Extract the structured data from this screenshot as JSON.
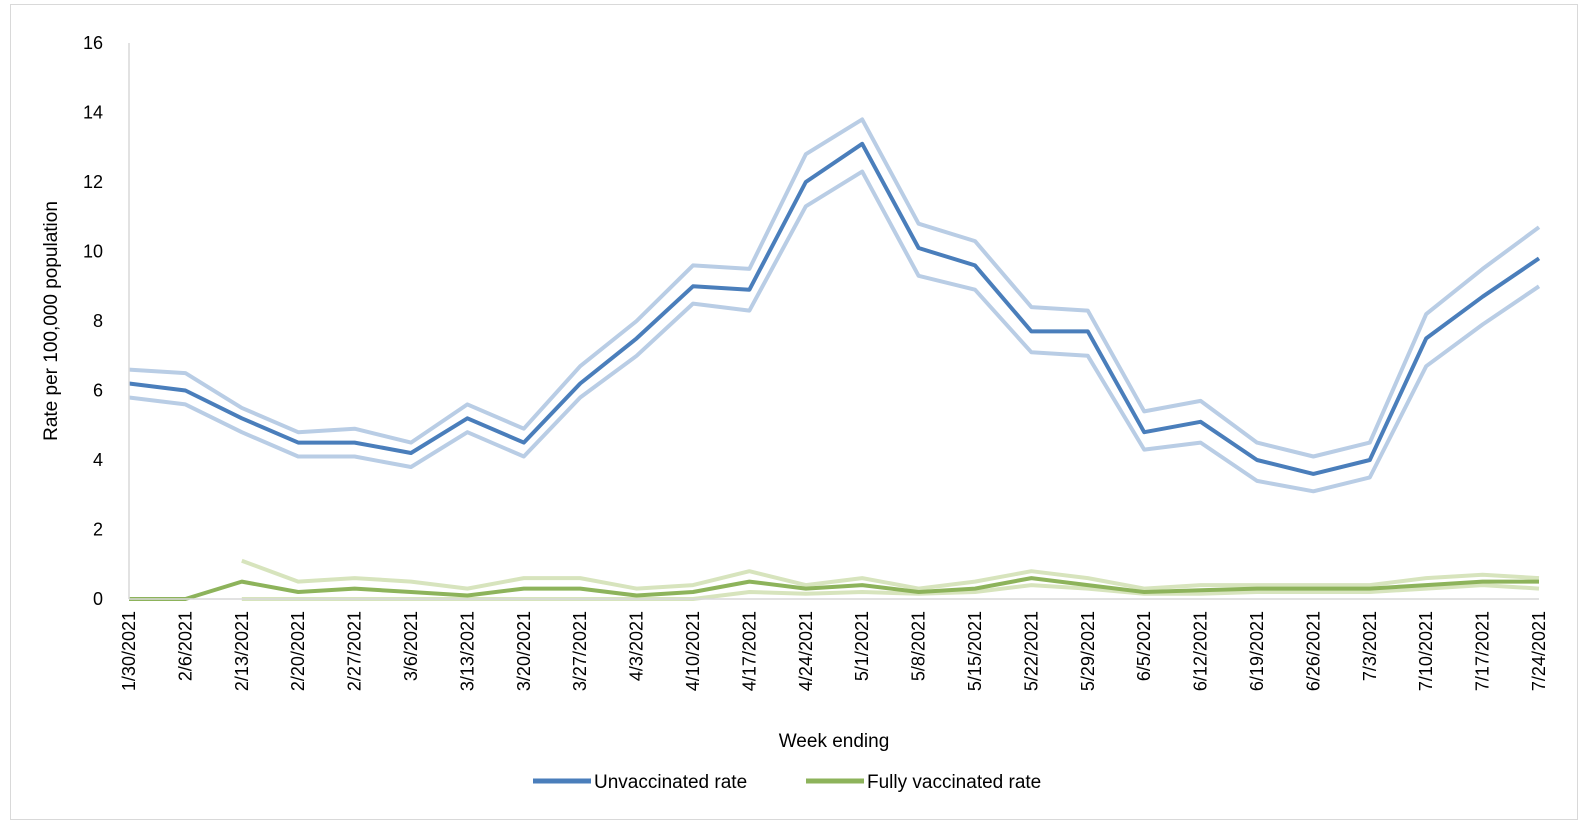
{
  "chart_data": {
    "type": "line",
    "title": "",
    "xlabel": "Week ending",
    "ylabel": "Rate per 100,000 population",
    "ylim": [
      0,
      16
    ],
    "yticks": [
      0,
      2,
      4,
      6,
      8,
      10,
      12,
      14,
      16
    ],
    "grid": false,
    "legend_position": "bottom",
    "categories": [
      "1/30/2021",
      "2/6/2021",
      "2/13/2021",
      "2/20/2021",
      "2/27/2021",
      "3/6/2021",
      "3/13/2021",
      "3/20/2021",
      "3/27/2021",
      "4/3/2021",
      "4/10/2021",
      "4/17/2021",
      "4/24/2021",
      "5/1/2021",
      "5/8/2021",
      "5/15/2021",
      "5/22/2021",
      "5/29/2021",
      "6/5/2021",
      "6/12/2021",
      "6/19/2021",
      "6/26/2021",
      "7/3/2021",
      "7/10/2021",
      "7/17/2021",
      "7/24/2021"
    ],
    "series": [
      {
        "name": "Unvaccinated rate",
        "color": "#4a7ebb",
        "values": [
          6.2,
          6.0,
          5.2,
          4.5,
          4.5,
          4.2,
          5.2,
          4.5,
          6.2,
          7.5,
          9.0,
          8.9,
          12.0,
          13.1,
          10.1,
          9.6,
          7.7,
          7.7,
          4.8,
          5.1,
          4.0,
          3.6,
          4.0,
          7.5,
          8.7,
          9.8
        ],
        "upper": [
          6.6,
          6.5,
          5.5,
          4.8,
          4.9,
          4.5,
          5.6,
          4.9,
          6.7,
          8.0,
          9.6,
          9.5,
          12.8,
          13.8,
          10.8,
          10.3,
          8.4,
          8.3,
          5.4,
          5.7,
          4.5,
          4.1,
          4.5,
          8.2,
          9.5,
          10.7
        ],
        "lower": [
          5.8,
          5.6,
          4.8,
          4.1,
          4.1,
          3.8,
          4.8,
          4.1,
          5.8,
          7.0,
          8.5,
          8.3,
          11.3,
          12.3,
          9.3,
          8.9,
          7.1,
          7.0,
          4.3,
          4.5,
          3.4,
          3.1,
          3.5,
          6.7,
          7.9,
          9.0
        ],
        "band_color": "#b9cde5"
      },
      {
        "name": "Fully vaccinated rate",
        "color": "#8db35b",
        "values": [
          0.0,
          0.0,
          0.5,
          0.2,
          0.3,
          0.2,
          0.1,
          0.3,
          0.3,
          0.1,
          0.2,
          0.5,
          0.3,
          0.4,
          0.2,
          0.3,
          0.6,
          0.4,
          0.2,
          0.25,
          0.3,
          0.3,
          0.3,
          0.4,
          0.5,
          0.5
        ],
        "upper": [
          null,
          null,
          1.1,
          0.5,
          0.6,
          0.5,
          0.3,
          0.6,
          0.6,
          0.3,
          0.4,
          0.8,
          0.4,
          0.6,
          0.3,
          0.5,
          0.8,
          0.6,
          0.3,
          0.4,
          0.4,
          0.4,
          0.4,
          0.6,
          0.7,
          0.6
        ],
        "lower": [
          null,
          null,
          0.0,
          0.0,
          0.0,
          0.0,
          0.0,
          0.0,
          0.0,
          0.0,
          0.0,
          0.2,
          0.15,
          0.2,
          0.15,
          0.2,
          0.4,
          0.3,
          0.15,
          0.15,
          0.2,
          0.2,
          0.2,
          0.3,
          0.4,
          0.3
        ],
        "band_color": "#d7e4bd"
      }
    ]
  }
}
